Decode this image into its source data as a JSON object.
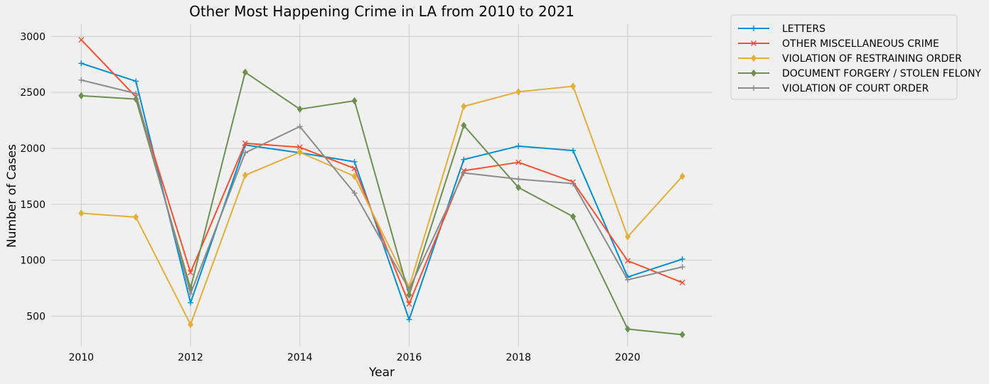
{
  "chart_data": {
    "type": "line",
    "title": "Other Most Happening Crime in LA from 2010 to 2021",
    "xlabel": "Year",
    "ylabel": "Number of Cases",
    "x": [
      2010,
      2011,
      2012,
      2013,
      2014,
      2015,
      2016,
      2017,
      2018,
      2019,
      2020,
      2021
    ],
    "xticks": [
      "2010",
      "2012",
      "2014",
      "2016",
      "2018",
      "2020"
    ],
    "yticks": [
      "500",
      "1000",
      "1500",
      "2000",
      "2500",
      "3000"
    ],
    "xlim": [
      2009.45,
      2021.55
    ],
    "ylim": [
      230,
      3110
    ],
    "grid": true,
    "legend_position": "outside-right",
    "series": [
      {
        "name": "LETTERS",
        "color": "#008fd5",
        "marker": "plus",
        "values": [
          2760,
          2600,
          620,
          2030,
          1960,
          1880,
          470,
          1900,
          2020,
          1980,
          850,
          1010
        ]
      },
      {
        "name": "OTHER MISCELLANEOUS CRIME",
        "color": "#fc4f30",
        "marker": "x",
        "values": [
          2970,
          2460,
          890,
          2045,
          2010,
          1820,
          610,
          1800,
          1875,
          1700,
          995,
          800
        ]
      },
      {
        "name": "VIOLATION OF RESTRAINING ORDER",
        "color": "#e5ae38",
        "marker": "diamond",
        "values": [
          1420,
          1385,
          425,
          1760,
          1965,
          1750,
          760,
          2375,
          2505,
          2555,
          1210,
          1750
        ]
      },
      {
        "name": "DOCUMENT FORGERY / STOLEN FELONY",
        "color": "#6d904f",
        "marker": "diamond",
        "values": [
          2470,
          2440,
          750,
          2680,
          2350,
          2425,
          690,
          2205,
          1650,
          1390,
          385,
          335
        ]
      },
      {
        "name": "VIOLATION OF COURT ORDER",
        "color": "#8b8b8b",
        "marker": "plus",
        "values": [
          2610,
          2490,
          700,
          1960,
          2195,
          1600,
          740,
          1780,
          1725,
          1685,
          825,
          940
        ]
      }
    ]
  }
}
